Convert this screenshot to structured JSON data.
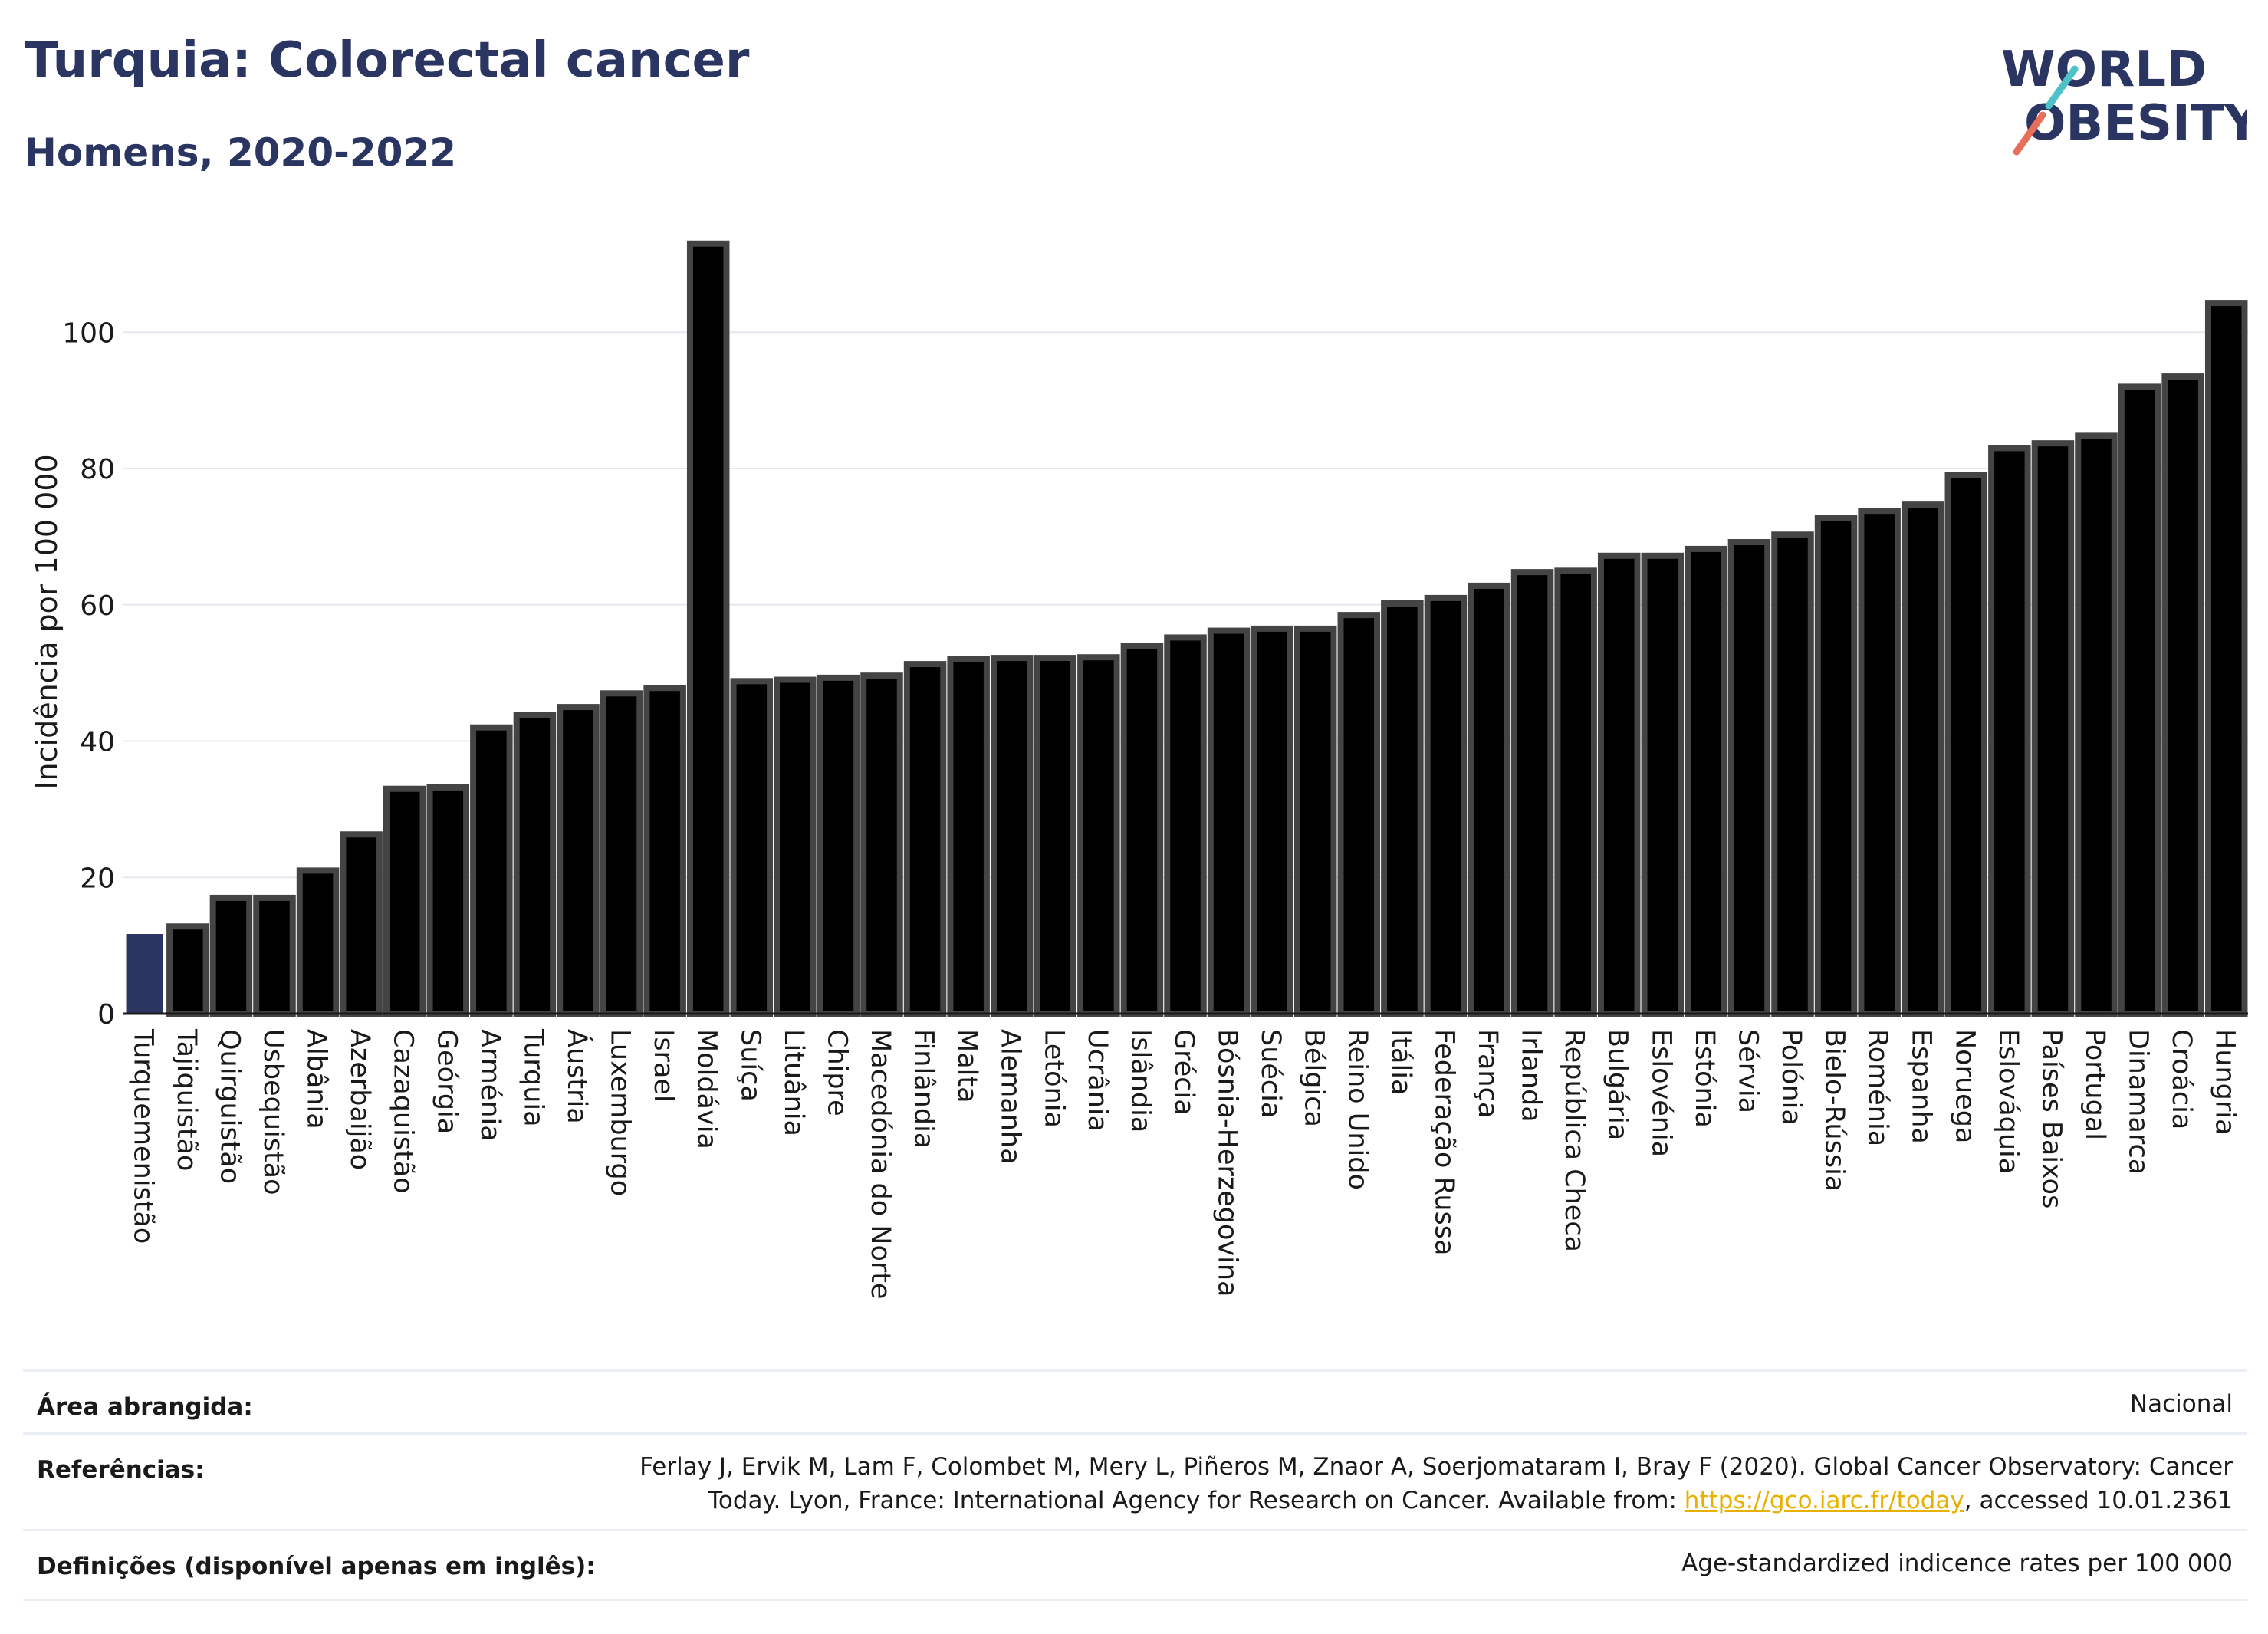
{
  "title": "Turquia: Colorectal cancer",
  "subtitle": "Homens, 2020-2022",
  "logo": {
    "line1": "WORLD",
    "line2": "OBESITY"
  },
  "colors": {
    "title": "#2b3561",
    "highlight": "#2b3561",
    "bar": "#000000",
    "bar_border": "#444444",
    "link": "#e8b000"
  },
  "chart_data": {
    "type": "bar",
    "ylabel": "Incidência por 100 000",
    "ylim": [
      0,
      115
    ],
    "yticks": [
      0,
      20,
      40,
      60,
      80,
      100
    ],
    "grid": true,
    "highlight": "Turquemenistão",
    "categories": [
      "Turquemenistão",
      "Tajiquistão",
      "Quirguistão",
      "Usbequistão",
      "Albânia",
      "Azerbaijão",
      "Cazaquistão",
      "Geórgia",
      "Arménia",
      "Turquia",
      "Áustria",
      "Luxemburgo",
      "Israel",
      "Moldávia",
      "Suíça",
      "Lituânia",
      "Chipre",
      "Macedónia do Norte",
      "Finlândia",
      "Malta",
      "Alemanha",
      "Letónia",
      "Ucrânia",
      "Islândia",
      "Grécia",
      "Bósnia-Herzegovina",
      "Suécia",
      "Bélgica",
      "Reino Unido",
      "Itália",
      "Federação Russa",
      "França",
      "Irlanda",
      "República Checa",
      "Bulgária",
      "Eslovénia",
      "Estónia",
      "Sérvia",
      "Polónia",
      "Bielo-Rússia",
      "Roménia",
      "Espanha",
      "Noruega",
      "Eslováquia",
      "Países Baixos",
      "Portugal",
      "Dinamarca",
      "Croácia",
      "Hungria"
    ],
    "values": [
      11.7,
      12.8,
      17.0,
      17.0,
      21.0,
      26.3,
      33.0,
      33.2,
      42.0,
      43.8,
      45.0,
      47.0,
      47.8,
      113.0,
      48.8,
      49.0,
      49.3,
      49.6,
      51.3,
      52.0,
      52.2,
      52.2,
      52.3,
      54.0,
      55.2,
      56.2,
      56.5,
      56.5,
      58.5,
      60.2,
      61.0,
      62.8,
      64.8,
      65.0,
      67.2,
      67.2,
      68.2,
      69.2,
      70.3,
      72.7,
      73.8,
      74.7,
      79.0,
      83.0,
      83.7,
      84.8,
      92.0,
      93.5,
      104.3
    ]
  },
  "footer": {
    "area_label": "Área abrangida:",
    "area_value": "Nacional",
    "ref_label": "Referências:",
    "ref_line1": "Ferlay J, Ervik M, Lam F, Colombet M, Mery L, Piñeros M, Znaor A, Soerjomataram I, Bray F (2020). Global Cancer Observatory: Cancer",
    "ref_line2_pre": "Today. Lyon, France: International Agency for Research on Cancer. Available from: ",
    "ref_link": "https://gco.iarc.fr/today",
    "ref_line2_post": ", accessed 10.01.2361",
    "def_label": "Definições (disponível apenas em inglês):",
    "def_value": "Age-standardized indicence rates per 100 000"
  }
}
